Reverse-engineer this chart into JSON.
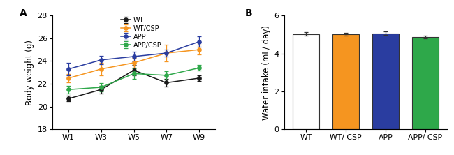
{
  "panel_A": {
    "title": "A",
    "ylabel": "Body weight (g)",
    "x_labels": [
      "W1",
      "W3",
      "W5",
      "W7",
      "W9"
    ],
    "x_vals": [
      1,
      2,
      3,
      4,
      5
    ],
    "ylim": [
      18,
      28
    ],
    "yticks": [
      18,
      20,
      22,
      24,
      26,
      28
    ],
    "series": {
      "WT": {
        "color": "#1a1a1a",
        "values": [
          20.7,
          21.5,
          23.2,
          22.1,
          22.5
        ],
        "errors": [
          0.25,
          0.35,
          0.45,
          0.35,
          0.25
        ]
      },
      "WT/CSP": {
        "color": "#F59520",
        "values": [
          22.5,
          23.3,
          23.85,
          24.7,
          25.0
        ],
        "errors": [
          0.35,
          0.55,
          0.45,
          0.75,
          0.45
        ]
      },
      "APP": {
        "color": "#2A3DA0",
        "values": [
          23.3,
          24.1,
          24.4,
          24.7,
          25.7
        ],
        "errors": [
          0.55,
          0.35,
          0.45,
          0.28,
          0.45
        ]
      },
      "APP/CSP": {
        "color": "#2EA84A",
        "values": [
          21.5,
          21.7,
          22.9,
          22.75,
          23.4
        ],
        "errors": [
          0.35,
          0.35,
          0.45,
          0.35,
          0.25
        ]
      }
    },
    "legend_order": [
      "WT",
      "WT/CSP",
      "APP",
      "APP/CSP"
    ]
  },
  "panel_B": {
    "title": "B",
    "ylabel": "Water intake (mL/ day)",
    "ylim": [
      0,
      6
    ],
    "yticks": [
      0,
      2,
      4,
      6
    ],
    "categories": [
      "WT",
      "WT/ CSP",
      "APP",
      "APP/ CSP"
    ],
    "values": [
      5.02,
      5.02,
      5.06,
      4.88
    ],
    "errors": [
      0.09,
      0.08,
      0.09,
      0.07
    ],
    "colors": [
      "#FFFFFF",
      "#F59520",
      "#2A3DA0",
      "#2EA84A"
    ]
  }
}
